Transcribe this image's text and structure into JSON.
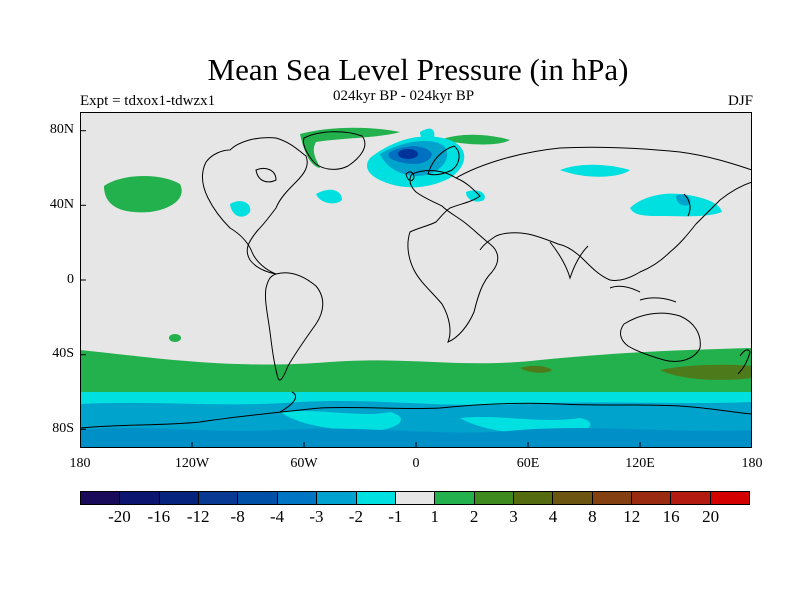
{
  "title": "Mean Sea Level Pressure (in hPa)",
  "left_label": "Expt = tdxox1-tdwzx1",
  "center_label": "024kyr BP - 024kyr BP",
  "right_label": "DJF",
  "y_ticks": [
    "80N",
    "40N",
    "0",
    "40S",
    "80S"
  ],
  "x_ticks": [
    "180",
    "120W",
    "60W",
    "0",
    "60E",
    "120E",
    "180"
  ],
  "colors": {
    "ocean_background": "#e6e6e6",
    "cyan": "#00e0e0",
    "blue_light": "#00a3cc",
    "blue_mid": "#0070c0",
    "blue_dark": "#003399",
    "green": "#22b14c",
    "olive": "#4d7a1a",
    "coastline": "#000000"
  },
  "colorbar": {
    "colors": [
      "#1a0a5a",
      "#0c1570",
      "#06237e",
      "#083a94",
      "#0050a8",
      "#0075c4",
      "#00a3d0",
      "#00e0e0",
      "#e6e6e6",
      "#22b14c",
      "#3f8a1f",
      "#556b10",
      "#6b5510",
      "#844010",
      "#9a2a10",
      "#b31a10",
      "#d40000"
    ],
    "labels": [
      "-20",
      "-16",
      "-12",
      "-8",
      "-4",
      "-3",
      "-2",
      "-1",
      "1",
      "2",
      "3",
      "4",
      "8",
      "12",
      "16",
      "20"
    ]
  }
}
